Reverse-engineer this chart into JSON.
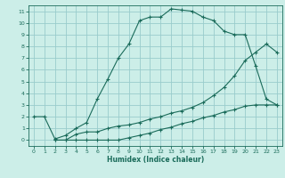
{
  "xlabel": "Humidex (Indice chaleur)",
  "bg_color": "#cceee8",
  "grid_color": "#99cccc",
  "line_color": "#1a6b5a",
  "xlim": [
    -0.5,
    23.5
  ],
  "ylim": [
    -0.5,
    11.5
  ],
  "xticks": [
    0,
    1,
    2,
    3,
    4,
    5,
    6,
    7,
    8,
    9,
    10,
    11,
    12,
    13,
    14,
    15,
    16,
    17,
    18,
    19,
    20,
    21,
    22,
    23
  ],
  "yticks": [
    0,
    1,
    2,
    3,
    4,
    5,
    6,
    7,
    8,
    9,
    10,
    11
  ],
  "line1_x": [
    0,
    1,
    2,
    3,
    4,
    5,
    6,
    7,
    8,
    9,
    10,
    11,
    12,
    13,
    14,
    15,
    16,
    17,
    18,
    19,
    20,
    21,
    22,
    23
  ],
  "line1_y": [
    2,
    2,
    0.1,
    0.4,
    1.0,
    1.5,
    3.5,
    5.2,
    7.0,
    8.2,
    10.2,
    10.5,
    10.5,
    11.2,
    11.1,
    11.0,
    10.5,
    10.2,
    9.3,
    9.0,
    9.0,
    6.3,
    3.5,
    3.0
  ],
  "line2_x": [
    2,
    3,
    4,
    5,
    6,
    7,
    8,
    9,
    10,
    11,
    12,
    13,
    14,
    15,
    16,
    17,
    18,
    19,
    20,
    21,
    22,
    23
  ],
  "line2_y": [
    0,
    0,
    0.5,
    0.7,
    0.7,
    1.0,
    1.2,
    1.3,
    1.5,
    1.8,
    2.0,
    2.3,
    2.5,
    2.8,
    3.2,
    3.8,
    4.5,
    5.5,
    6.8,
    7.5,
    8.2,
    7.5
  ],
  "line3_x": [
    2,
    3,
    4,
    5,
    6,
    7,
    8,
    9,
    10,
    11,
    12,
    13,
    14,
    15,
    16,
    17,
    18,
    19,
    20,
    21,
    22,
    23
  ],
  "line3_y": [
    0,
    0,
    0,
    0,
    0,
    0,
    0,
    0.2,
    0.4,
    0.6,
    0.9,
    1.1,
    1.4,
    1.6,
    1.9,
    2.1,
    2.4,
    2.6,
    2.9,
    3.0,
    3.0,
    3.0
  ]
}
